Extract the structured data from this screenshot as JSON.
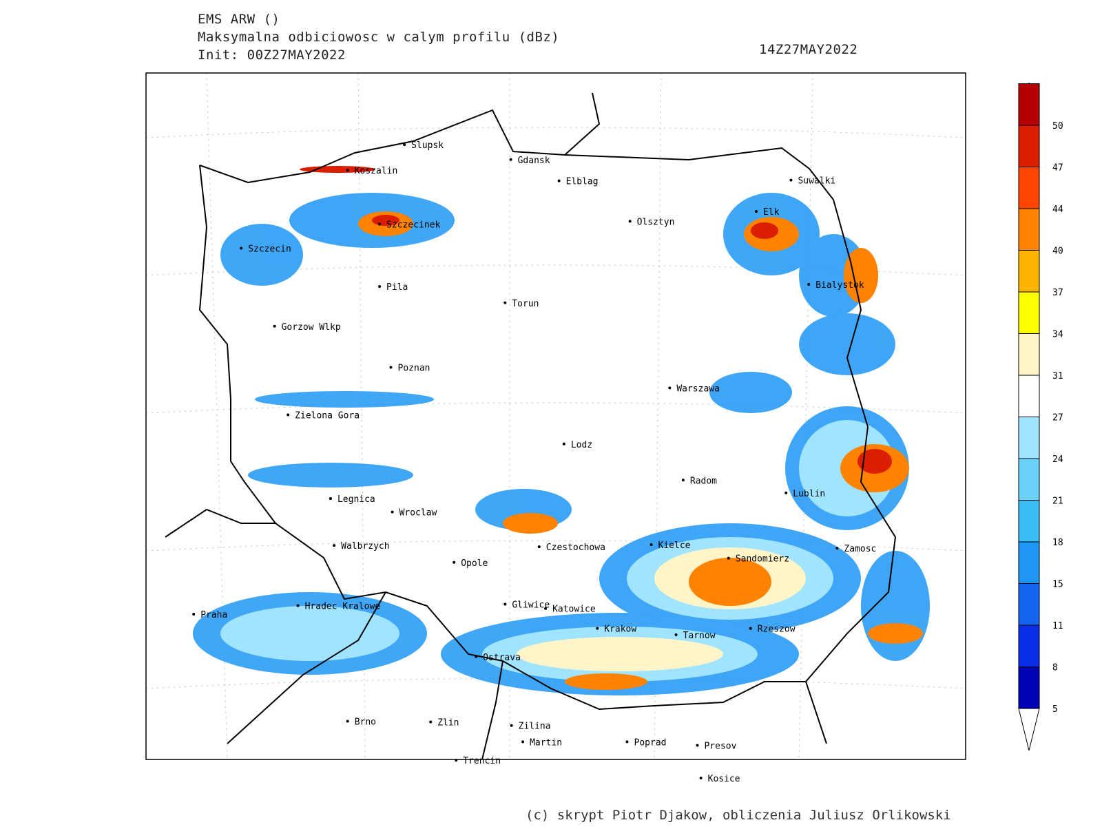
{
  "header": {
    "model": "EMS ARW ()",
    "field": "Maksymalna odbiciowosc w calym profilu (dBz)",
    "init": "Init: 00Z27MAY2022",
    "valid": "14Z27MAY2022"
  },
  "cities": [
    "Slupsk",
    "Gdansk",
    "Elblag",
    "Suwalki",
    "Koszalin",
    "Elk",
    "Szczecinek",
    "Olsztyn",
    "Szczecin",
    "Bialystok",
    "Pila",
    "Torun",
    "Gorzow Wlkp",
    "Poznan",
    "Warszawa",
    "Zielona Gora",
    "Lodz",
    "Radom",
    "Lublin",
    "Legnica",
    "Wroclaw",
    "Walbrzych",
    "Czestochowa",
    "Kielce",
    "Opole",
    "Sandomierz",
    "Zamosc",
    "Praha",
    "Hradec Kralowe",
    "Gliwice",
    "Katowice",
    "Krakow",
    "Tarnow",
    "Rzeszow",
    "Ostrava",
    "Brno",
    "Zlin",
    "Zilina",
    "Martin",
    "Poprad",
    "Presov",
    "Trencin",
    "Kosice"
  ],
  "colorbar": {
    "levels": [
      5,
      8,
      11,
      15,
      18,
      21,
      24,
      27,
      31,
      34,
      37,
      40,
      44,
      47,
      50
    ],
    "colors": [
      "#0000b4",
      "#0a2ee6",
      "#1464f0",
      "#1e96f5",
      "#3cbcf5",
      "#6ad2fa",
      "#a0e4ff",
      "#ffffff",
      "#fff5c8",
      "#ffff00",
      "#ffb400",
      "#ff8200",
      "#ff4600",
      "#dc1e00",
      "#b40000"
    ]
  },
  "footer": "(c) skrypt Piotr Djakow, obliczenia Juliusz Orlikowski"
}
